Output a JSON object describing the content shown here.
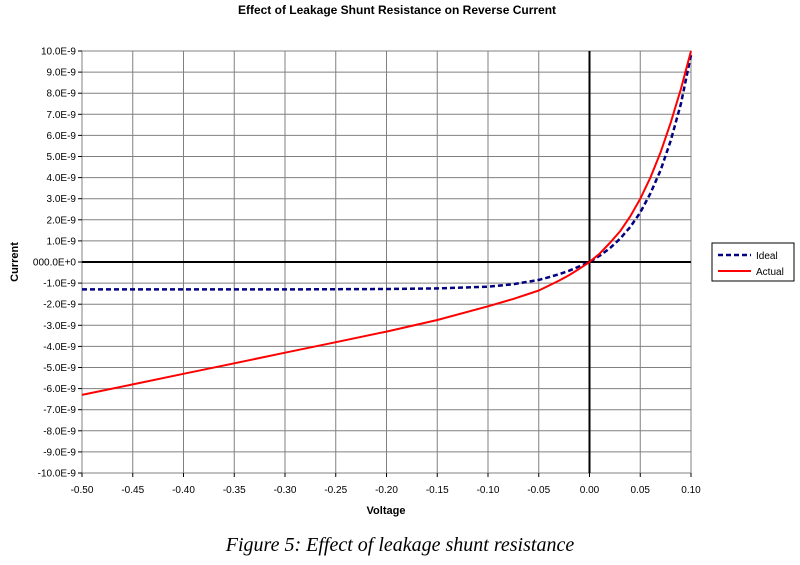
{
  "chart_data": {
    "type": "line",
    "title": "Effect of Leakage Shunt Resistance on Reverse Current",
    "xlabel": "Voltage",
    "ylabel": "Current",
    "xlim": [
      -0.5,
      0.1
    ],
    "ylim": [
      -1e-08,
      1e-08
    ],
    "x_tick_values": [
      -0.5,
      -0.45,
      -0.4,
      -0.35,
      -0.3,
      -0.25,
      -0.2,
      -0.15,
      -0.1,
      -0.05,
      0.0,
      0.05,
      0.1
    ],
    "x_tick_labels": [
      "-0.50",
      "-0.45",
      "-0.40",
      "-0.35",
      "-0.30",
      "-0.25",
      "-0.20",
      "-0.15",
      "-0.10",
      "-0.05",
      "0.00",
      "0.05",
      "0.10"
    ],
    "y_tick_values": [
      1e-08,
      9e-09,
      8e-09,
      7e-09,
      6e-09,
      5e-09,
      4e-09,
      3e-09,
      2e-09,
      1e-09,
      0,
      -1e-09,
      -2e-09,
      -3e-09,
      -4e-09,
      -5e-09,
      -6e-09,
      -7e-09,
      -8e-09,
      -9e-09,
      -1e-08
    ],
    "y_tick_labels": [
      "10.0E-9",
      "9.0E-9",
      "8.0E-9",
      "7.0E-9",
      "6.0E-9",
      "5.0E-9",
      "4.0E-9",
      "3.0E-9",
      "2.0E-9",
      "1.0E-9",
      "000.0E+0",
      "-1.0E-9",
      "-2.0E-9",
      "-3.0E-9",
      "-4.0E-9",
      "-5.0E-9",
      "-6.0E-9",
      "-7.0E-9",
      "-8.0E-9",
      "-9.0E-9",
      "-10.0E-9"
    ],
    "grid": true,
    "legend": "right",
    "series": [
      {
        "name": "Ideal",
        "style": "dashed",
        "color": "#000080",
        "x": [
          -0.5,
          -0.45,
          -0.4,
          -0.35,
          -0.3,
          -0.25,
          -0.2,
          -0.15,
          -0.1,
          -0.075,
          -0.05,
          -0.04,
          -0.03,
          -0.02,
          -0.01,
          0.0,
          0.01,
          0.02,
          0.03,
          0.04,
          0.05,
          0.06,
          0.07,
          0.08,
          0.09,
          0.1
        ],
        "y": [
          -1.3e-09,
          -1.3e-09,
          -1.3e-09,
          -1.3e-09,
          -1.3e-09,
          -1.29e-09,
          -1.28e-09,
          -1.25e-09,
          -1.17e-09,
          -1.05e-09,
          -8.5e-10,
          -7.2e-10,
          -5.8e-10,
          -4.1e-10,
          -2.1e-10,
          0.0,
          3e-10,
          6.5e-10,
          1.1e-09,
          1.65e-09,
          2.35e-09,
          3.25e-09,
          4.35e-09,
          5.75e-09,
          7.5e-09,
          9.8e-09
        ]
      },
      {
        "name": "Actual",
        "style": "solid",
        "color": "#ff0000",
        "x": [
          -0.5,
          -0.45,
          -0.4,
          -0.35,
          -0.3,
          -0.25,
          -0.2,
          -0.15,
          -0.1,
          -0.075,
          -0.05,
          -0.04,
          -0.03,
          -0.02,
          -0.01,
          0.0,
          0.01,
          0.02,
          0.03,
          0.04,
          0.05,
          0.06,
          0.07,
          0.08,
          0.09,
          0.1
        ],
        "y": [
          -6.3e-09,
          -5.8e-09,
          -5.3e-09,
          -4.8e-09,
          -4.3e-09,
          -3.8e-09,
          -3.3e-09,
          -2.75e-09,
          -2.1e-09,
          -1.75e-09,
          -1.35e-09,
          -1.12e-09,
          -8.8e-10,
          -6.2e-10,
          -3.2e-10,
          0.0,
          4e-10,
          9e-10,
          1.45e-09,
          2.15e-09,
          3e-09,
          4e-09,
          5.2e-09,
          6.6e-09,
          8.2e-09,
          1.01e-08
        ]
      }
    ]
  },
  "caption": "Figure 5: Effect of leakage shunt resistance"
}
